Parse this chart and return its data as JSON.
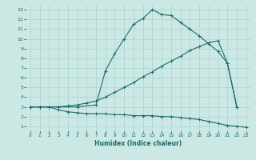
{
  "xlabel": "Humidex (Indice chaleur)",
  "background_color": "#cce8e4",
  "grid_color": "#aad4d0",
  "line_color": "#1a6b6b",
  "xlim": [
    -0.5,
    23.5
  ],
  "ylim": [
    0.5,
    13.5
  ],
  "xticks": [
    0,
    1,
    2,
    3,
    4,
    5,
    6,
    7,
    8,
    9,
    10,
    11,
    12,
    13,
    14,
    15,
    16,
    17,
    18,
    19,
    20,
    21,
    22,
    23
  ],
  "yticks": [
    1,
    2,
    3,
    4,
    5,
    6,
    7,
    8,
    9,
    10,
    11,
    12,
    13
  ],
  "curve1_x": [
    0,
    1,
    2,
    3,
    4,
    5,
    6,
    7,
    8,
    9,
    10,
    11,
    12,
    13,
    14,
    15,
    16,
    17,
    18,
    19,
    20,
    21,
    22,
    23
  ],
  "curve1_y": [
    3.0,
    3.0,
    3.0,
    2.7,
    2.5,
    2.4,
    2.3,
    2.3,
    2.3,
    2.2,
    2.2,
    2.1,
    2.1,
    2.1,
    2.0,
    2.0,
    1.9,
    1.8,
    1.7,
    1.5,
    1.3,
    1.1,
    1.0,
    0.9
  ],
  "curve2_x": [
    0,
    1,
    2,
    3,
    4,
    5,
    6,
    7,
    8,
    9,
    10,
    11,
    12,
    13,
    14,
    15,
    16,
    17,
    18,
    19,
    20,
    21,
    22
  ],
  "curve2_y": [
    3.0,
    3.0,
    3.0,
    3.0,
    3.1,
    3.2,
    3.4,
    3.6,
    4.0,
    4.5,
    5.0,
    5.5,
    6.1,
    6.6,
    7.2,
    7.7,
    8.2,
    8.8,
    9.2,
    9.6,
    9.8,
    7.5,
    3.0
  ],
  "curve3_x": [
    0,
    1,
    2,
    3,
    5,
    7,
    8,
    9,
    10,
    11,
    12,
    13,
    14,
    15,
    16,
    17,
    18,
    19,
    20,
    21,
    22
  ],
  "curve3_y": [
    3.0,
    3.0,
    3.0,
    3.0,
    3.0,
    3.2,
    6.7,
    8.5,
    10.0,
    11.5,
    12.1,
    13.0,
    12.5,
    12.4,
    11.7,
    11.0,
    10.3,
    9.5,
    8.7,
    7.5,
    3.0
  ]
}
